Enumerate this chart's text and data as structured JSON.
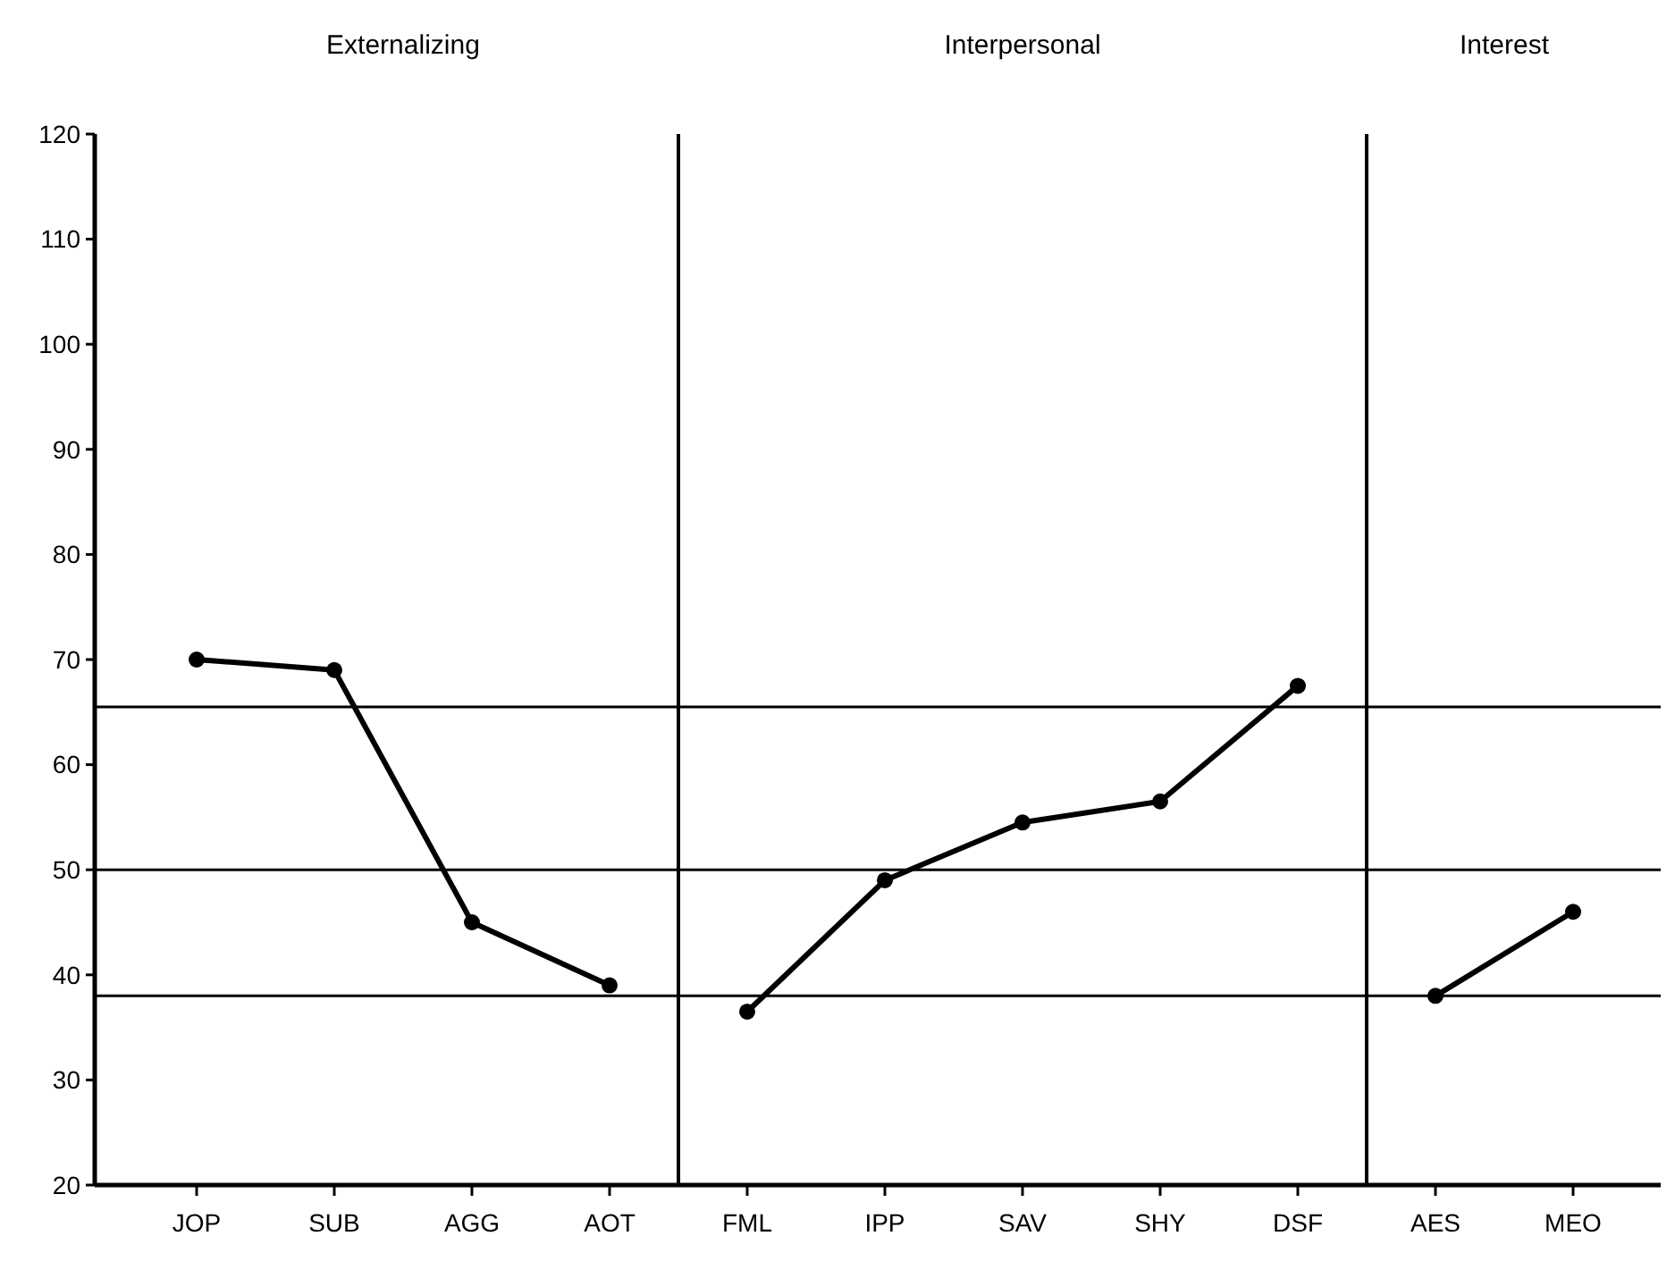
{
  "chart_data": {
    "type": "line",
    "categories": [
      "JOP",
      "SUB",
      "AGG",
      "AOT",
      "FML",
      "IPP",
      "SAV",
      "SHY",
      "DSF",
      "AES",
      "MEO"
    ],
    "series": [
      {
        "color": "#000000",
        "values": [
          70,
          69,
          45,
          39,
          null,
          null,
          null,
          null,
          null,
          null,
          null
        ]
      },
      {
        "color": "#000000",
        "values": [
          null,
          null,
          null,
          null,
          36.5,
          49,
          54.5,
          56.5,
          67.5,
          null,
          null
        ]
      },
      {
        "color": "#000000",
        "values": [
          null,
          null,
          null,
          null,
          null,
          null,
          null,
          null,
          null,
          38,
          46
        ]
      }
    ],
    "ylim": [
      20,
      120
    ],
    "yticks": [
      20,
      30,
      40,
      50,
      60,
      70,
      80,
      90,
      100,
      110,
      120
    ],
    "marker": "circle",
    "line_style": "solid",
    "grid": false,
    "annotations": [
      "Externalizing",
      "Interpersonal",
      "Interest"
    ],
    "ref_lines": [
      {
        "axis": "y",
        "value": 65.5,
        "color": "#000000"
      },
      {
        "axis": "y",
        "value": 50,
        "color": "#000000"
      },
      {
        "axis": "y",
        "value": 38,
        "color": "#000000"
      }
    ]
  }
}
